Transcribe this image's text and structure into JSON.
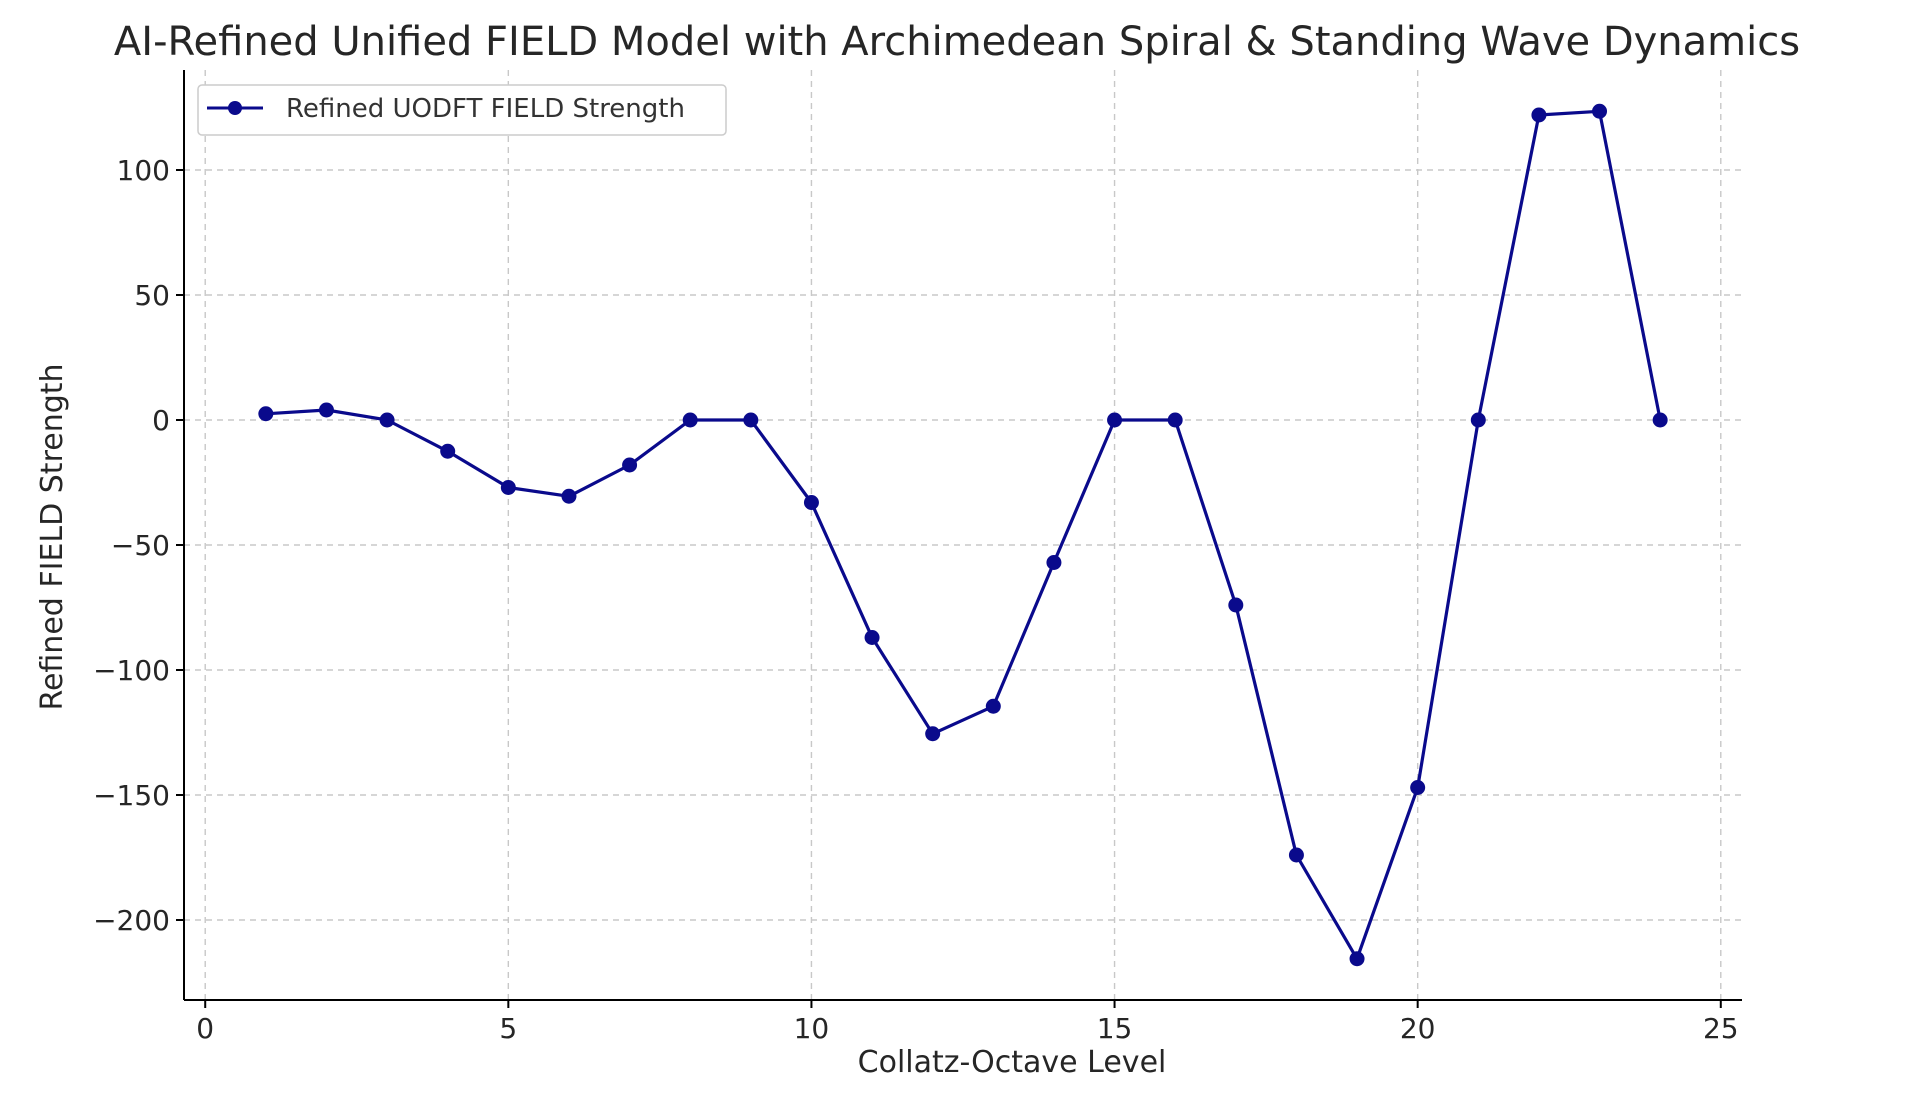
{
  "chart_data": {
    "type": "line",
    "title": "AI-Refined Unified FIELD Model with Archimedean Spiral & Standing Wave Dynamics",
    "xlabel": "Collatz-Octave Level",
    "ylabel": "Refined FIELD Strength",
    "xlim": [
      -0.35,
      25.35
    ],
    "ylim": [
      -232,
      140
    ],
    "xticks": [
      0,
      5,
      10,
      15,
      20,
      25
    ],
    "yticks": [
      -200,
      -150,
      -100,
      -50,
      0,
      50,
      100
    ],
    "ytick_labels": [
      "−200",
      "−150",
      "−100",
      "−50",
      "0",
      "50",
      "100"
    ],
    "grid": true,
    "legend_position": "top-left",
    "series": [
      {
        "name": "Refined UODFT FIELD Strength",
        "color": "#0a0a8c",
        "marker": "circle",
        "x": [
          1,
          2,
          3,
          4,
          5,
          6,
          7,
          8,
          9,
          10,
          11,
          12,
          13,
          14,
          15,
          16,
          17,
          18,
          19,
          20,
          21,
          22,
          23,
          24
        ],
        "y": [
          2.5,
          4,
          0,
          -12.5,
          -27,
          -30.5,
          -18,
          0,
          0,
          -33,
          -87,
          -125.5,
          -114.5,
          -57,
          0,
          0,
          -74,
          -174,
          -215.5,
          -147,
          0,
          122,
          123.5,
          0
        ]
      }
    ]
  }
}
